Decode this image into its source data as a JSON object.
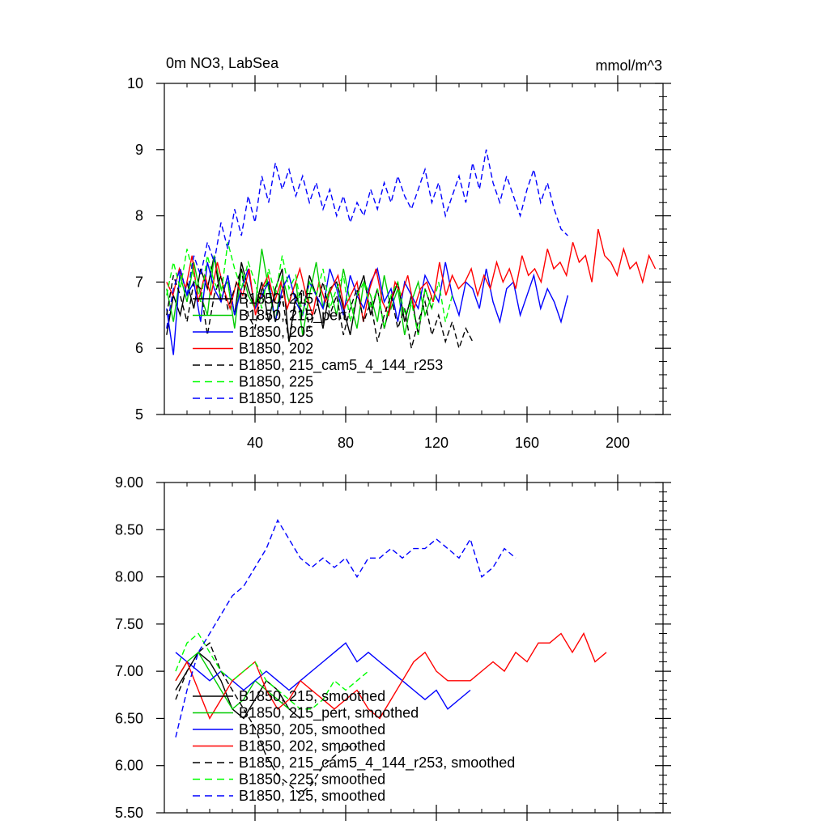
{
  "chart_data": [
    {
      "type": "line",
      "title_left": "0m NO3, LabSea",
      "title_right": "mmol/m^3",
      "xlabel": "",
      "ylabel": "",
      "xlim": [
        0,
        220
      ],
      "ylim": [
        5,
        10
      ],
      "x_ticks": [
        40,
        80,
        120,
        160,
        200
      ],
      "y_ticks": [
        5,
        6,
        7,
        8,
        9,
        10
      ],
      "y_tick_labels": [
        "5",
        "6",
        "7",
        "8",
        "9",
        "10"
      ],
      "legend_position": "lower-left",
      "series": [
        {
          "name": "B1850, 215",
          "color": "#000000",
          "dash": "solid",
          "x_start": 1,
          "values": [
            6.2,
            6.8,
            6.5,
            7.0,
            6.6,
            7.2,
            6.9,
            7.4,
            6.7,
            7.1,
            6.5,
            7.3,
            6.9,
            6.6,
            7.0,
            6.4,
            6.9,
            7.2,
            6.1,
            6.8,
            6.5,
            7.1,
            6.8,
            6.3,
            6.9,
            7.0,
            6.6,
            6.2,
            6.8,
            7.1,
            6.5,
            6.9,
            6.3,
            6.7,
            7.0,
            6.4,
            6.8,
            6.2,
            6.9,
            6.6
          ]
        },
        {
          "name": "B1850, 215_pert",
          "color": "#00cc00",
          "dash": "solid",
          "x_start": 1,
          "values": [
            6.9,
            6.4,
            7.1,
            6.7,
            7.3,
            6.8,
            6.5,
            7.4,
            6.9,
            7.0,
            6.3,
            7.2,
            6.8,
            6.6,
            7.5,
            6.9,
            6.4,
            7.1,
            6.7,
            7.0,
            6.2,
            6.8,
            7.3,
            6.6,
            6.9,
            6.5,
            7.2,
            6.7,
            6.3,
            7.0,
            6.8,
            6.4,
            7.1,
            6.6,
            6.9,
            6.2,
            6.7,
            7.0,
            6.5,
            6.8
          ]
        },
        {
          "name": "B1850, 205",
          "color": "#0000ff",
          "dash": "solid",
          "x_start": 1,
          "values": [
            6.6,
            5.9,
            7.2,
            6.8,
            7.0,
            6.4,
            7.3,
            6.9,
            6.7,
            7.1,
            6.5,
            6.9,
            7.2,
            6.6,
            6.8,
            7.0,
            6.4,
            6.9,
            7.1,
            6.7,
            6.5,
            7.0,
            6.8,
            6.6,
            7.2,
            6.9,
            6.5,
            7.1,
            6.8,
            6.6,
            7.0,
            7.2,
            6.7,
            6.9,
            6.4,
            7.0,
            6.8,
            6.6,
            7.1,
            6.9,
            6.7,
            7.3,
            6.8,
            6.5,
            7.0,
            6.9,
            6.6,
            7.2,
            6.7,
            6.4,
            6.9,
            7.0,
            6.5,
            6.8,
            7.1,
            6.6,
            6.9,
            6.7,
            6.4,
            6.8
          ]
        },
        {
          "name": "B1850, 202",
          "color": "#ff0000",
          "dash": "solid",
          "x_start": 1,
          "values": [
            7.0,
            6.8,
            7.2,
            6.9,
            7.4,
            6.7,
            7.1,
            6.8,
            7.3,
            6.9,
            6.6,
            7.0,
            6.8,
            7.2,
            6.5,
            6.9,
            7.1,
            6.7,
            7.0,
            6.6,
            6.9,
            7.2,
            6.8,
            6.5,
            7.0,
            6.7,
            6.9,
            7.1,
            6.6,
            6.8,
            7.0,
            6.4,
            6.9,
            7.2,
            6.7,
            6.5,
            7.0,
            6.8,
            7.1,
            6.6,
            6.9,
            7.0,
            6.7,
            7.3,
            6.8,
            7.1,
            6.9,
            7.0,
            7.2,
            6.8,
            7.1,
            6.9,
            7.3,
            7.0,
            7.2,
            6.9,
            7.4,
            7.1,
            7.2,
            7.0,
            7.5,
            7.2,
            7.3,
            7.1,
            7.6,
            7.3,
            7.4,
            7.0,
            7.8,
            7.4,
            7.3,
            7.1,
            7.5,
            7.2,
            7.3,
            7.0,
            7.4,
            7.2
          ]
        },
        {
          "name": "B1850, 215_cam5_4_144_r253",
          "color": "#000000",
          "dash": "dashed",
          "x_start": 1,
          "values": [
            6.5,
            7.1,
            6.8,
            6.4,
            7.0,
            6.9,
            6.2,
            6.8,
            7.1,
            6.6,
            6.9,
            7.2,
            6.5,
            6.3,
            6.9,
            7.0,
            6.4,
            6.8,
            6.1,
            6.7,
            6.9,
            6.3,
            6.6,
            7.0,
            6.5,
            6.8,
            6.2,
            6.6,
            6.9,
            6.4,
            6.7,
            6.1,
            6.5,
            6.8,
            6.3,
            6.6,
            6.0,
            6.4,
            6.7,
            6.2,
            6.5,
            6.1,
            6.4,
            6.0,
            6.3,
            6.1
          ]
        },
        {
          "name": "B1850, 225",
          "color": "#00ff00",
          "dash": "dashed",
          "x_start": 1,
          "values": [
            6.8,
            7.3,
            6.9,
            7.5,
            7.1,
            6.7,
            7.4,
            7.0,
            6.8,
            7.6,
            7.2,
            6.9,
            7.3,
            7.0,
            6.6,
            7.2,
            6.8,
            7.4,
            6.9,
            7.1,
            6.5,
            7.0,
            6.8,
            7.2,
            6.6,
            6.9,
            7.1,
            6.4,
            6.8,
            7.0,
            6.6,
            6.9,
            6.3,
            6.8,
            7.0,
            6.5,
            6.7,
            6.2,
            6.9,
            6.6,
            7.0,
            6.4,
            6.8
          ]
        },
        {
          "name": "B1850, 125",
          "color": "#0000ff",
          "dash": "dashed",
          "x_start": 1,
          "values": [
            6.3,
            6.9,
            7.2,
            6.8,
            7.4,
            7.1,
            7.6,
            7.3,
            7.9,
            7.5,
            8.1,
            7.7,
            8.3,
            7.9,
            8.6,
            8.2,
            8.8,
            8.4,
            8.7,
            8.3,
            8.6,
            8.2,
            8.5,
            8.1,
            8.4,
            8.0,
            8.3,
            7.9,
            8.2,
            8.0,
            8.4,
            8.1,
            8.5,
            8.2,
            8.6,
            8.3,
            8.1,
            8.4,
            8.7,
            8.2,
            8.5,
            8.0,
            8.3,
            8.6,
            8.2,
            8.8,
            8.4,
            9.0,
            8.5,
            8.2,
            8.6,
            8.3,
            8.0,
            8.4,
            8.7,
            8.2,
            8.5,
            8.1,
            7.8,
            7.7
          ]
        }
      ]
    },
    {
      "type": "line",
      "xlabel": "",
      "ylabel": "",
      "xlim": [
        0,
        220
      ],
      "ylim": [
        5.5,
        9.0
      ],
      "x_ticks": [
        40,
        80,
        120,
        160,
        200
      ],
      "y_ticks": [
        5.5,
        6.0,
        6.5,
        7.0,
        7.5,
        8.0,
        8.5,
        9.0
      ],
      "y_tick_labels": [
        "5.50",
        "6.00",
        "6.50",
        "7.00",
        "7.50",
        "8.00",
        "8.50",
        "9.00"
      ],
      "legend_position": "lower-left",
      "series": [
        {
          "name": "B1850, 215, smoothed",
          "color": "#000000",
          "dash": "solid",
          "x_start": 5,
          "values": [
            6.8,
            7.0,
            7.2,
            7.1,
            6.9,
            6.6,
            6.5,
            6.7,
            6.9,
            6.8,
            6.6,
            6.5
          ]
        },
        {
          "name": "B1850, 215_pert, smoothed",
          "color": "#00cc00",
          "dash": "solid",
          "x_start": 5,
          "values": [
            6.9,
            7.1,
            7.2,
            7.0,
            6.8,
            6.6,
            6.7,
            6.9,
            6.8,
            6.7,
            6.6
          ]
        },
        {
          "name": "B1850, 205, smoothed",
          "color": "#0000ff",
          "dash": "solid",
          "x_start": 5,
          "values": [
            7.2,
            7.1,
            7.0,
            6.9,
            7.0,
            6.9,
            6.8,
            6.9,
            7.0,
            6.9,
            6.8,
            6.9,
            7.0,
            7.1,
            7.2,
            7.3,
            7.1,
            7.2,
            7.1,
            7.0,
            6.9,
            6.8,
            6.7,
            6.8,
            6.6,
            6.7,
            6.8
          ]
        },
        {
          "name": "B1850, 202, smoothed",
          "color": "#ff0000",
          "dash": "solid",
          "x_start": 5,
          "values": [
            6.9,
            7.1,
            6.8,
            6.5,
            6.7,
            6.9,
            7.0,
            7.1,
            6.8,
            6.6,
            6.7,
            6.9,
            6.8,
            6.7,
            6.6,
            6.7,
            6.8,
            6.6,
            6.5,
            6.7,
            6.9,
            7.1,
            7.2,
            7.0,
            6.9,
            6.9,
            6.9,
            7.0,
            7.1,
            7.0,
            7.2,
            7.1,
            7.3,
            7.3,
            7.4,
            7.2,
            7.4,
            7.1,
            7.2
          ]
        },
        {
          "name": "B1850, 215_cam5_4_144_r253, smoothed",
          "color": "#000000",
          "dash": "dashed",
          "x_start": 5,
          "values": [
            6.7,
            7.0,
            7.2,
            7.3,
            7.0,
            6.8,
            6.6,
            6.4,
            6.1,
            5.9,
            5.8,
            5.7,
            5.8,
            6.0,
            6.1,
            6.2,
            6.2
          ]
        },
        {
          "name": "B1850, 225, smoothed",
          "color": "#00ff00",
          "dash": "dashed",
          "x_start": 5,
          "values": [
            7.0,
            7.3,
            7.4,
            7.2,
            7.0,
            6.9,
            7.0,
            7.1,
            6.9,
            6.8,
            6.7,
            6.6,
            6.6,
            6.7,
            6.9,
            6.8,
            6.9,
            7.0
          ]
        },
        {
          "name": "B1850, 125, smoothed",
          "color": "#0000ff",
          "dash": "dashed",
          "x_start": 5,
          "values": [
            6.3,
            6.8,
            7.2,
            7.4,
            7.6,
            7.8,
            7.9,
            8.1,
            8.3,
            8.6,
            8.4,
            8.2,
            8.1,
            8.2,
            8.1,
            8.2,
            8.0,
            8.2,
            8.2,
            8.3,
            8.2,
            8.3,
            8.3,
            8.4,
            8.3,
            8.2,
            8.4,
            8.0,
            8.1,
            8.3,
            8.2
          ]
        }
      ]
    }
  ]
}
